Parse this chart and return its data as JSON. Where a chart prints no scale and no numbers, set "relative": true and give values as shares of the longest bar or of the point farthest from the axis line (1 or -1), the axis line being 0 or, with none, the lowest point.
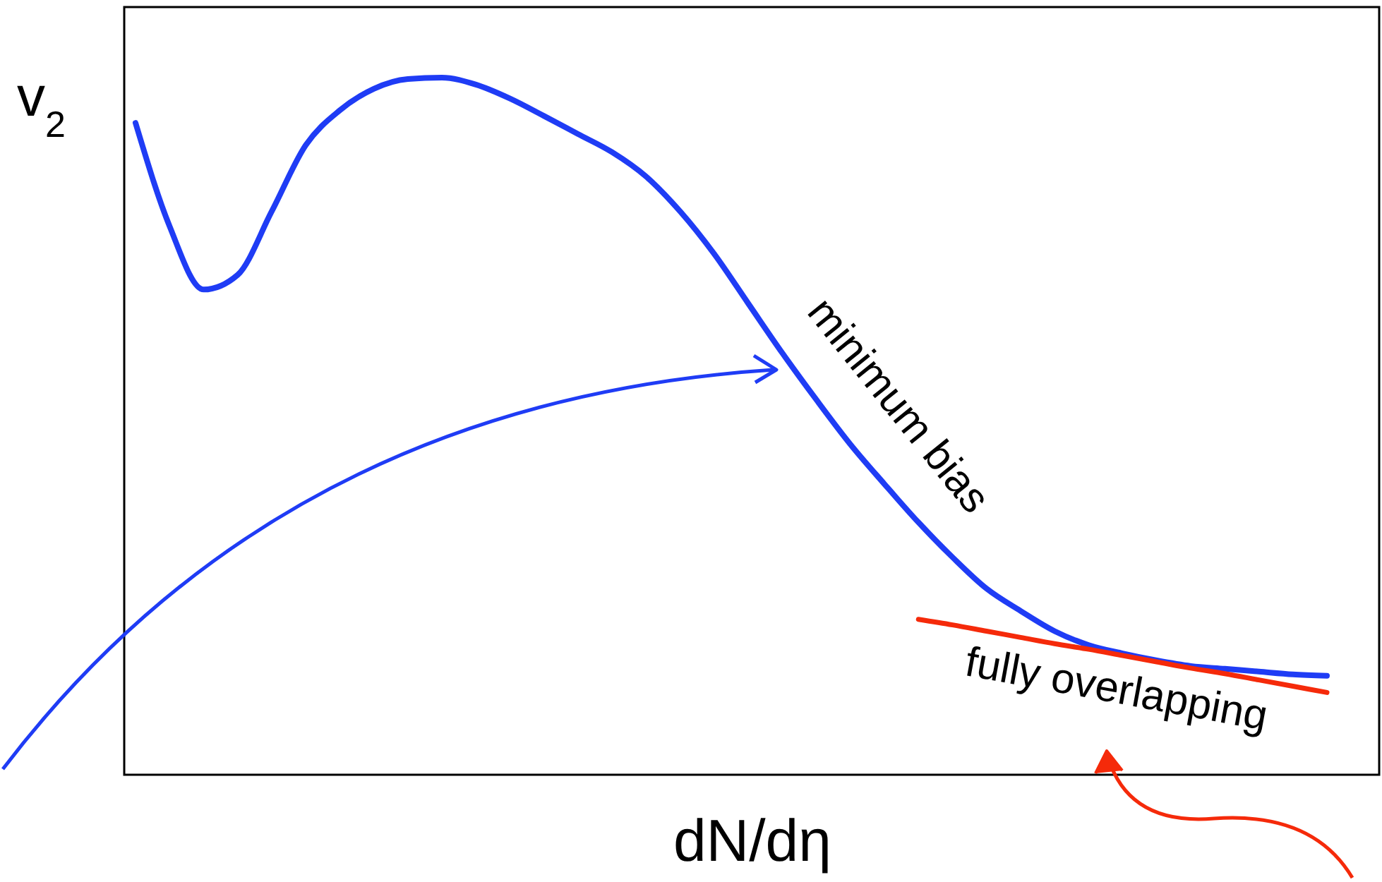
{
  "chart_data": {
    "type": "line",
    "relative": true,
    "xlabel": "dN/dη",
    "ylabel": "v$_{2}$",
    "categories": [
      null,
      null,
      null,
      null,
      null,
      null,
      null,
      null,
      null,
      null,
      null,
      null,
      null,
      null,
      null,
      null,
      null,
      null,
      null,
      null,
      null,
      null,
      null,
      null,
      null,
      null,
      null,
      null,
      null,
      null,
      null,
      null,
      null,
      null,
      null,
      null
    ],
    "series": [
      {
        "name": "minimum bias",
        "color": "#1f3cf5",
        "values": [
          0.935,
          0.787,
          0.696,
          0.717,
          0.808,
          0.903,
          0.953,
          0.984,
          0.998,
          1,
          0.99,
          0.97,
          0.945,
          0.919,
          0.893,
          0.858,
          0.808,
          0.747,
          0.676,
          0.605,
          0.538,
          0.474,
          0.417,
          0.362,
          0.312,
          0.267,
          0.235,
          0.206,
          0.186,
          0.174,
          0.164,
          0.156,
          0.152,
          0.148,
          0.144,
          0.142
        ]
      },
      {
        "name": "fully overlapping",
        "color": "#f52a0a",
        "values": [
          null,
          null,
          null,
          null,
          null,
          null,
          null,
          null,
          null,
          null,
          null,
          null,
          null,
          null,
          null,
          null,
          null,
          null,
          null,
          null,
          null,
          null,
          null,
          0.223,
          0.215,
          0.206,
          0.197,
          0.188,
          0.18,
          0.171,
          0.162,
          0.153,
          0.145,
          0.136,
          0.127,
          0.118
        ]
      }
    ]
  }
}
